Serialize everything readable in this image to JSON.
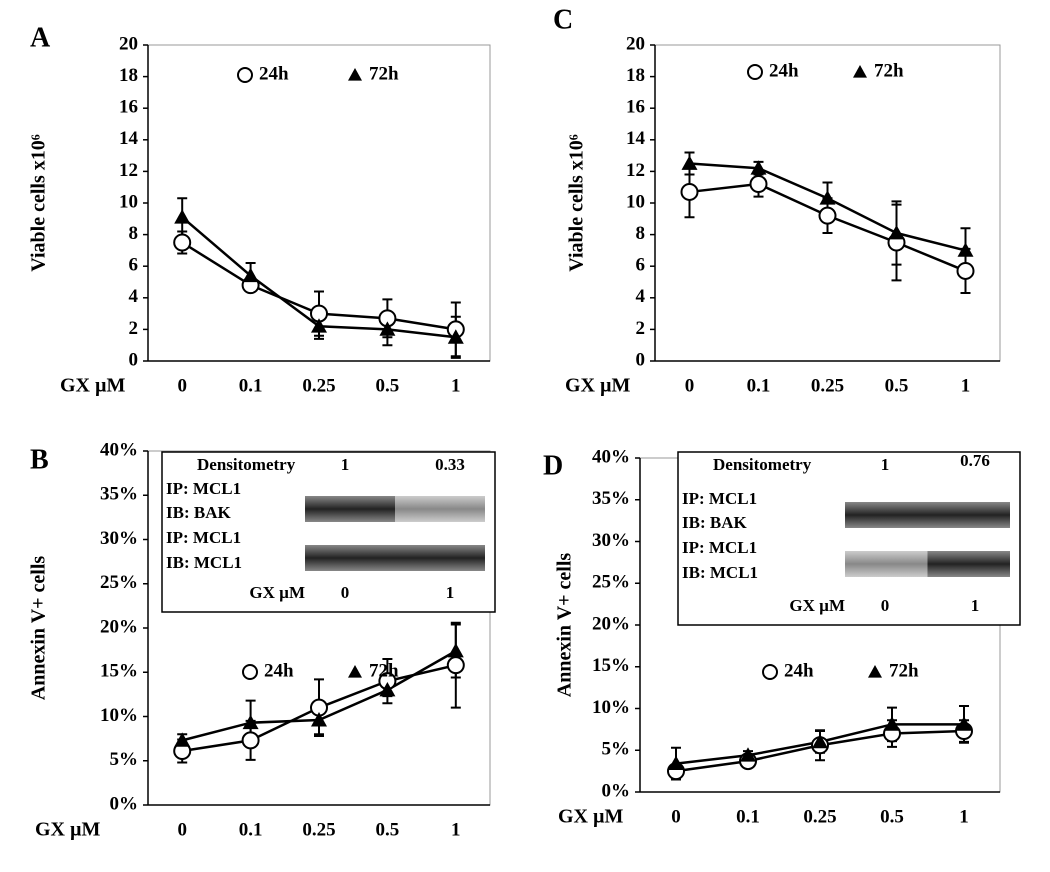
{
  "chart_data": [
    {
      "type": "line",
      "panel": "A",
      "ylabel": "Viable cells x10⁶",
      "xlabel": "GX µM",
      "categories": [
        "0",
        "0.1",
        "0.25",
        "0.5",
        "1"
      ],
      "ylim": [
        0,
        20
      ],
      "yticks": [
        0,
        2,
        4,
        6,
        8,
        10,
        12,
        14,
        16,
        18,
        20
      ],
      "series": [
        {
          "name": "24h",
          "marker": "circle",
          "color": "#000000",
          "values": [
            7.5,
            4.8,
            3.0,
            2.7,
            2.0
          ],
          "errors": [
            0.7,
            0.3,
            1.4,
            1.2,
            1.7
          ]
        },
        {
          "name": "72h",
          "marker": "triangle",
          "color": "#000000",
          "values": [
            9.1,
            5.4,
            2.2,
            2.0,
            1.5
          ],
          "errors": [
            1.2,
            0.8,
            0.8,
            1.0,
            1.3
          ]
        }
      ]
    },
    {
      "type": "line",
      "panel": "C",
      "ylabel": "Viable cells x10⁶",
      "xlabel": "GX µM",
      "categories": [
        "0",
        "0.1",
        "0.25",
        "0.5",
        "1"
      ],
      "ylim": [
        0,
        20
      ],
      "yticks": [
        0,
        2,
        4,
        6,
        8,
        10,
        12,
        14,
        16,
        18,
        20
      ],
      "series": [
        {
          "name": "24h",
          "marker": "circle",
          "color": "#000000",
          "values": [
            10.7,
            11.2,
            9.2,
            7.5,
            5.7
          ],
          "errors": [
            1.6,
            0.8,
            1.1,
            2.4,
            1.4
          ]
        },
        {
          "name": "72h",
          "marker": "triangle",
          "color": "#000000",
          "values": [
            12.5,
            12.2,
            10.3,
            8.1,
            7.0
          ],
          "errors": [
            0.7,
            0.4,
            1.0,
            2.0,
            1.4
          ]
        }
      ]
    },
    {
      "type": "line",
      "panel": "B",
      "ylabel": "Annexin V+ cells",
      "xlabel": "GX µM",
      "categories": [
        "0",
        "0.1",
        "0.25",
        "0.5",
        "1"
      ],
      "ylim": [
        0,
        40
      ],
      "yticks": [
        {
          "value": 0,
          "label": "0%"
        },
        {
          "value": 5,
          "label": "5%"
        },
        {
          "value": 10,
          "label": "10%"
        },
        {
          "value": 15,
          "label": "15%"
        },
        {
          "value": 20,
          "label": "20%"
        },
        {
          "value": 25,
          "label": "25%"
        },
        {
          "value": 30,
          "label": "30%"
        },
        {
          "value": 35,
          "label": "35%"
        },
        {
          "value": 40,
          "label": "40%"
        }
      ],
      "series": [
        {
          "name": "24h",
          "marker": "circle",
          "color": "#000000",
          "values": [
            6.1,
            7.3,
            11.0,
            14.0,
            15.8
          ],
          "errors": [
            1.3,
            2.2,
            3.2,
            2.5,
            4.8
          ]
        },
        {
          "name": "72h",
          "marker": "triangle",
          "color": "#000000",
          "values": [
            7.3,
            9.3,
            9.6,
            13.0,
            17.4
          ],
          "errors": [
            0.7,
            2.5,
            1.6,
            0.7,
            3.0
          ]
        }
      ],
      "inset": {
        "densitometry_label": "Densitometry",
        "densitometry": [
          1,
          0.33
        ],
        "rows": [
          "IP: MCL1",
          "IB: BAK",
          "IP: MCL1",
          "IB: MCL1"
        ],
        "xlabel": "GX µM",
        "lanes": [
          "0",
          "1"
        ]
      }
    },
    {
      "type": "line",
      "panel": "D",
      "ylabel": "Annexin V+ cells",
      "xlabel": "GX µM",
      "categories": [
        "0",
        "0.1",
        "0.25",
        "0.5",
        "1"
      ],
      "ylim": [
        0,
        40
      ],
      "yticks": [
        {
          "value": 0,
          "label": "0%"
        },
        {
          "value": 5,
          "label": "5%"
        },
        {
          "value": 10,
          "label": "10%"
        },
        {
          "value": 15,
          "label": "15%"
        },
        {
          "value": 20,
          "label": "20%"
        },
        {
          "value": 25,
          "label": "25%"
        },
        {
          "value": 30,
          "label": "30%"
        },
        {
          "value": 35,
          "label": "35%"
        },
        {
          "value": 40,
          "label": "40%"
        }
      ],
      "series": [
        {
          "name": "24h",
          "marker": "circle",
          "color": "#000000",
          "values": [
            2.5,
            3.7,
            5.6,
            7.0,
            7.3
          ],
          "errors": [
            0.6,
            0.6,
            1.8,
            1.6,
            1.3
          ]
        },
        {
          "name": "72h",
          "marker": "triangle",
          "color": "#000000",
          "values": [
            3.4,
            4.4,
            6.0,
            8.1,
            8.1
          ],
          "errors": [
            1.9,
            0.5,
            1.3,
            2.0,
            2.2
          ]
        }
      ],
      "inset": {
        "densitometry_label": "Densitometry",
        "densitometry": [
          1,
          0.76
        ],
        "rows": [
          "IP: MCL1",
          "IB: BAK",
          "IP: MCL1",
          "IB: MCL1"
        ],
        "xlabel": "GX µM",
        "lanes": [
          "0",
          "1"
        ]
      }
    }
  ]
}
